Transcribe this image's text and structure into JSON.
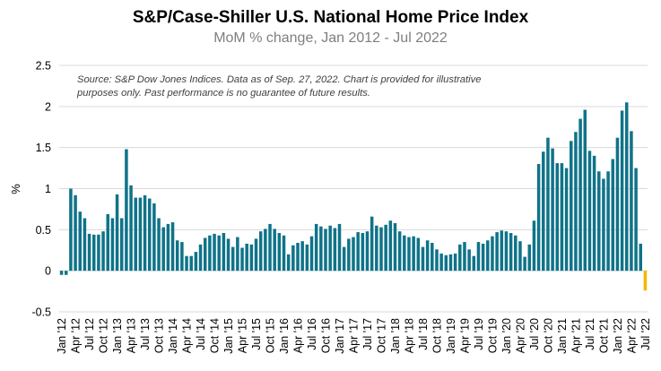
{
  "chart_data": {
    "type": "bar",
    "title": "S&P/Case-Shiller U.S. National Home Price Index",
    "subtitle": "MoM % change, Jan 2012 - Jul 2022",
    "note": "Source: S&P Dow Jones Indices. Data as of Sep. 27, 2022.  Chart is provided for illustrative purposes only. Past performance is no guarantee of future results.",
    "xlabel": "",
    "ylabel": "%",
    "ylim": [
      -0.5,
      2.5
    ],
    "yticks": [
      -0.5,
      0,
      0.5,
      1,
      1.5,
      2,
      2.5
    ],
    "ytick_labels": [
      "-0.5",
      "0",
      "0.5",
      "1",
      "1.5",
      "2",
      "2.5"
    ],
    "grid": true,
    "legend": "none",
    "colors": {
      "bar": "#0f7389",
      "highlight": "#f1b800",
      "grid": "#d9d9d9"
    },
    "x_start": "Jan 2012",
    "x_tick_labels": [
      "Jan '12",
      "Apr '12",
      "Jul '12",
      "Oct '12",
      "Jan '13",
      "Apr '13",
      "Jul '13",
      "Oct '13",
      "Jan '14",
      "Apr '14",
      "Jul '14",
      "Oct '14",
      "Jan '15",
      "Apr '15",
      "Jul '15",
      "Oct '15",
      "Jan '16",
      "Apr '16",
      "Jul '16",
      "Oct '16",
      "Jan '17",
      "Apr '17",
      "Jul '17",
      "Oct '17",
      "Jan '18",
      "Apr '18",
      "Jul '18",
      "Oct '18",
      "Jan '19",
      "Apr '19",
      "Jul '19",
      "Oct '19",
      "Jan '20",
      "Apr '20",
      "Jul '20",
      "Oct '20",
      "Jan '21",
      "Apr '21",
      "Jul '21",
      "Oct '21",
      "Jan '22",
      "Apr '22",
      "Jul '22"
    ],
    "values": [
      -0.05,
      -0.05,
      1.0,
      0.92,
      0.72,
      0.64,
      0.45,
      0.44,
      0.44,
      0.48,
      0.69,
      0.64,
      0.93,
      0.64,
      1.48,
      1.04,
      0.89,
      0.89,
      0.92,
      0.88,
      0.82,
      0.64,
      0.53,
      0.57,
      0.59,
      0.37,
      0.35,
      0.18,
      0.18,
      0.23,
      0.32,
      0.4,
      0.43,
      0.45,
      0.43,
      0.46,
      0.39,
      0.29,
      0.41,
      0.28,
      0.33,
      0.32,
      0.39,
      0.48,
      0.51,
      0.57,
      0.51,
      0.46,
      0.43,
      0.2,
      0.31,
      0.34,
      0.36,
      0.32,
      0.42,
      0.57,
      0.54,
      0.51,
      0.55,
      0.52,
      0.57,
      0.29,
      0.39,
      0.41,
      0.47,
      0.46,
      0.48,
      0.66,
      0.55,
      0.53,
      0.56,
      0.61,
      0.58,
      0.48,
      0.43,
      0.41,
      0.42,
      0.4,
      0.29,
      0.37,
      0.34,
      0.26,
      0.21,
      0.19,
      0.2,
      0.21,
      0.32,
      0.35,
      0.26,
      0.18,
      0.35,
      0.33,
      0.37,
      0.42,
      0.47,
      0.49,
      0.48,
      0.46,
      0.43,
      0.36,
      0.17,
      0.32,
      0.61,
      1.3,
      1.45,
      1.62,
      1.49,
      1.31,
      1.31,
      1.25,
      1.58,
      1.69,
      1.85,
      1.96,
      1.46,
      1.4,
      1.21,
      1.12,
      1.21,
      1.36,
      1.62,
      1.95,
      2.05,
      1.7,
      1.25,
      0.33,
      -0.24
    ],
    "highlight_last": true
  }
}
